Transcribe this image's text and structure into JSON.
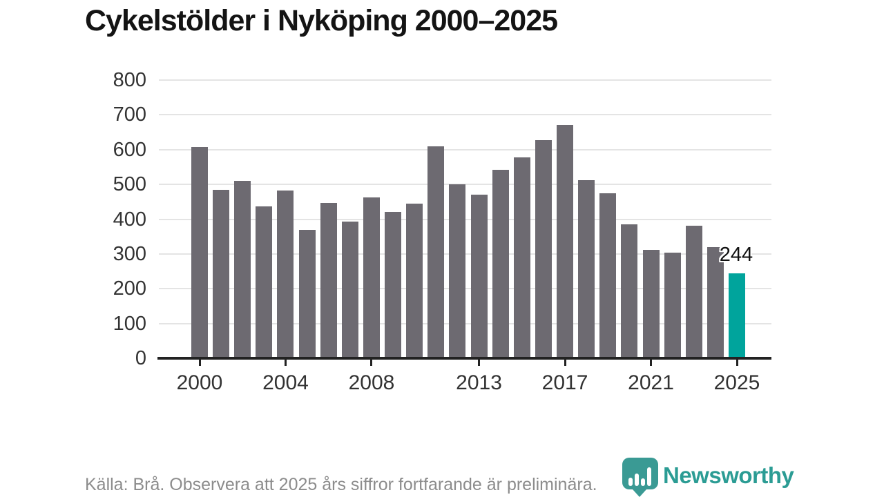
{
  "title": "Cykelstölder i Nyköping 2000–2025",
  "source_note": "Källa: Brå. Observera att 2025 års siffror fortfarande är preliminära.",
  "brand": {
    "name": "Newsworthy",
    "icon": "newsworthy-pin-barchart-icon",
    "wordmark_color": "#2b9c94",
    "icon_color": "#3a9a94"
  },
  "colors": {
    "bar": "#6d6a71",
    "highlight": "#00a49c",
    "gridline": "#e4e4e4",
    "axis": "#222222",
    "axis_label": "#333333",
    "title": "#141414",
    "note": "#8c8c8c",
    "annotation": "#111111"
  },
  "chart_data": {
    "type": "bar",
    "title": "Cykelstölder i Nyköping 2000–2025",
    "xlabel": "",
    "ylabel": "",
    "x": [
      2000,
      2001,
      2002,
      2003,
      2004,
      2005,
      2006,
      2007,
      2008,
      2009,
      2010,
      2011,
      2012,
      2013,
      2014,
      2015,
      2016,
      2017,
      2018,
      2019,
      2020,
      2021,
      2022,
      2023,
      2024,
      2025
    ],
    "values": [
      607,
      485,
      510,
      436,
      482,
      370,
      446,
      393,
      462,
      421,
      444,
      610,
      500,
      470,
      542,
      578,
      627,
      670,
      512,
      474,
      386,
      312,
      304,
      382,
      320,
      244
    ],
    "highlight_index": 25,
    "ylim": [
      0,
      800
    ],
    "yticks": [
      0,
      100,
      200,
      300,
      400,
      500,
      600,
      700,
      800
    ],
    "xticks": [
      2000,
      2004,
      2008,
      2013,
      2017,
      2021,
      2025
    ],
    "grid": "horizontal",
    "legend": "none",
    "data_label": {
      "index": 25,
      "text": "244"
    }
  }
}
